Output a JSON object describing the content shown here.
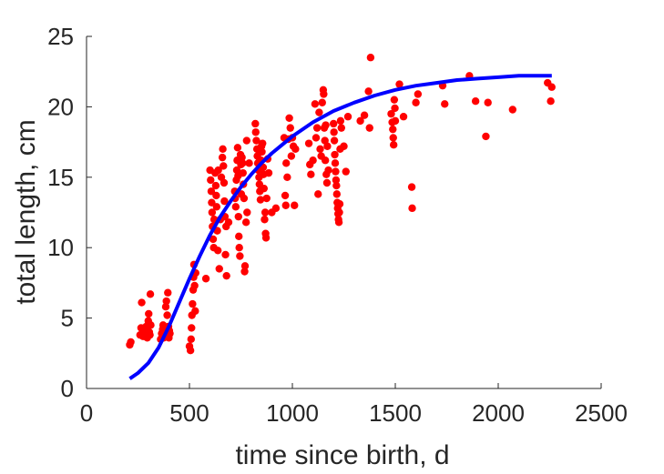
{
  "chart_data": {
    "type": "scatter",
    "title": "",
    "xlabel": "time since birth, d",
    "ylabel": "total length, cm",
    "xlim": [
      0,
      2500
    ],
    "ylim": [
      0,
      25
    ],
    "xticks": [
      0,
      500,
      1000,
      1500,
      2000,
      2500
    ],
    "yticks": [
      0,
      5,
      10,
      15,
      20,
      25
    ],
    "grid": false,
    "legend": "none",
    "colors": {
      "points": "#ff0000",
      "curve": "#0000ff",
      "axes": "#262626"
    },
    "series": [
      {
        "kind": "points",
        "points": [
          [
            210,
            3.1
          ],
          [
            215,
            3.3
          ],
          [
            260,
            3.8
          ],
          [
            265,
            4.3
          ],
          [
            268,
            6.1
          ],
          [
            275,
            3.7
          ],
          [
            280,
            4.1
          ],
          [
            285,
            3.9
          ],
          [
            290,
            4.4
          ],
          [
            295,
            3.6
          ],
          [
            300,
            4.8
          ],
          [
            302,
            5.3
          ],
          [
            305,
            4.0
          ],
          [
            308,
            3.8
          ],
          [
            310,
            6.7
          ],
          [
            312,
            4.5
          ],
          [
            360,
            3.5
          ],
          [
            365,
            3.9
          ],
          [
            370,
            4.2
          ],
          [
            372,
            4.5
          ],
          [
            375,
            3.6
          ],
          [
            378,
            4.3
          ],
          [
            380,
            3.7
          ],
          [
            385,
            5.8
          ],
          [
            388,
            6.2
          ],
          [
            390,
            4.0
          ],
          [
            392,
            5.2
          ],
          [
            395,
            6.8
          ],
          [
            398,
            4.4
          ],
          [
            400,
            3.6
          ],
          [
            402,
            4.1
          ],
          [
            405,
            3.9
          ],
          [
            500,
            3.0
          ],
          [
            505,
            2.7
          ],
          [
            508,
            3.5
          ],
          [
            510,
            4.3
          ],
          [
            512,
            5.2
          ],
          [
            515,
            6.0
          ],
          [
            518,
            7.0
          ],
          [
            520,
            7.9
          ],
          [
            522,
            8.8
          ],
          [
            525,
            7.3
          ],
          [
            528,
            5.5
          ],
          [
            530,
            8.2
          ],
          [
            580,
            7.8
          ],
          [
            600,
            15.5
          ],
          [
            603,
            14.8
          ],
          [
            606,
            14.0
          ],
          [
            608,
            13.2
          ],
          [
            610,
            12.5
          ],
          [
            612,
            11.5
          ],
          [
            615,
            10.6
          ],
          [
            618,
            10.0
          ],
          [
            620,
            12.0
          ],
          [
            625,
            15.3
          ],
          [
            628,
            14.4
          ],
          [
            630,
            13.7
          ],
          [
            632,
            12.9
          ],
          [
            635,
            11.2
          ],
          [
            638,
            9.8
          ],
          [
            640,
            15.5
          ],
          [
            645,
            8.5
          ],
          [
            650,
            12.0
          ],
          [
            655,
            15.0
          ],
          [
            660,
            16.4
          ],
          [
            662,
            17.0
          ],
          [
            665,
            15.8
          ],
          [
            668,
            14.6
          ],
          [
            670,
            13.3
          ],
          [
            672,
            12.2
          ],
          [
            675,
            9.5
          ],
          [
            678,
            11.5
          ],
          [
            680,
            8.0
          ],
          [
            690,
            11.8
          ],
          [
            720,
            14.0
          ],
          [
            722,
            13.5
          ],
          [
            725,
            12.9
          ],
          [
            728,
            14.8
          ],
          [
            730,
            15.5
          ],
          [
            732,
            16.2
          ],
          [
            734,
            17.1
          ],
          [
            736,
            15.1
          ],
          [
            738,
            12.2
          ],
          [
            740,
            10.8
          ],
          [
            742,
            10.0
          ],
          [
            745,
            9.4
          ],
          [
            748,
            16.6
          ],
          [
            750,
            15.9
          ],
          [
            752,
            13.8
          ],
          [
            755,
            16.4
          ],
          [
            758,
            16.0
          ],
          [
            760,
            15.3
          ],
          [
            762,
            14.5
          ],
          [
            765,
            13.5
          ],
          [
            768,
            8.3
          ],
          [
            770,
            8.7
          ],
          [
            775,
            11.8
          ],
          [
            778,
            17.6
          ],
          [
            780,
            12.5
          ],
          [
            790,
            16.0
          ],
          [
            820,
            18.8
          ],
          [
            822,
            18.2
          ],
          [
            825,
            17.6
          ],
          [
            828,
            17.0
          ],
          [
            830,
            16.5
          ],
          [
            832,
            16.0
          ],
          [
            835,
            15.5
          ],
          [
            838,
            15.0
          ],
          [
            840,
            14.5
          ],
          [
            842,
            14.0
          ],
          [
            845,
            13.4
          ],
          [
            848,
            16.2
          ],
          [
            850,
            17.2
          ],
          [
            852,
            16.8
          ],
          [
            855,
            17.4
          ],
          [
            858,
            15.7
          ],
          [
            860,
            15.2
          ],
          [
            862,
            14.2
          ],
          [
            865,
            12.0
          ],
          [
            868,
            12.5
          ],
          [
            870,
            11.0
          ],
          [
            872,
            10.7
          ],
          [
            875,
            13.5
          ],
          [
            880,
            16.3
          ],
          [
            885,
            15.3
          ],
          [
            900,
            12.5
          ],
          [
            920,
            12.8
          ],
          [
            960,
            17.8
          ],
          [
            965,
            13.7
          ],
          [
            968,
            13.0
          ],
          [
            970,
            16.0
          ],
          [
            975,
            15.0
          ],
          [
            980,
            17.7
          ],
          [
            985,
            19.2
          ],
          [
            990,
            18.5
          ],
          [
            995,
            16.5
          ],
          [
            1000,
            17.8
          ],
          [
            1005,
            17.2
          ],
          [
            1010,
            13.0
          ],
          [
            1015,
            17.0
          ],
          [
            1080,
            17.4
          ],
          [
            1085,
            15.9
          ],
          [
            1090,
            15.2
          ],
          [
            1100,
            16.2
          ],
          [
            1110,
            20.2
          ],
          [
            1115,
            17.8
          ],
          [
            1120,
            18.5
          ],
          [
            1125,
            13.8
          ],
          [
            1130,
            19.6
          ],
          [
            1135,
            17.0
          ],
          [
            1140,
            16.5
          ],
          [
            1145,
            20.3
          ],
          [
            1150,
            21.2
          ],
          [
            1152,
            20.9
          ],
          [
            1155,
            18.5
          ],
          [
            1158,
            17.6
          ],
          [
            1160,
            16.2
          ],
          [
            1162,
            18.7
          ],
          [
            1165,
            15.2
          ],
          [
            1168,
            14.6
          ],
          [
            1170,
            17.2
          ],
          [
            1175,
            15.5
          ],
          [
            1200,
            18.8
          ],
          [
            1202,
            18.2
          ],
          [
            1204,
            17.6
          ],
          [
            1206,
            16.6
          ],
          [
            1208,
            16.0
          ],
          [
            1210,
            15.4
          ],
          [
            1212,
            14.8
          ],
          [
            1214,
            14.4
          ],
          [
            1216,
            13.8
          ],
          [
            1218,
            13.2
          ],
          [
            1220,
            12.8
          ],
          [
            1222,
            12.4
          ],
          [
            1224,
            12.0
          ],
          [
            1226,
            11.8
          ],
          [
            1228,
            12.5
          ],
          [
            1230,
            13.1
          ],
          [
            1232,
            17.0
          ],
          [
            1234,
            19.0
          ],
          [
            1238,
            18.5
          ],
          [
            1250,
            17.2
          ],
          [
            1260,
            15.4
          ],
          [
            1270,
            19.3
          ],
          [
            1330,
            19.0
          ],
          [
            1350,
            19.4
          ],
          [
            1370,
            21.1
          ],
          [
            1375,
            18.5
          ],
          [
            1380,
            23.5
          ],
          [
            1480,
            19.5
          ],
          [
            1485,
            18.9
          ],
          [
            1488,
            18.4
          ],
          [
            1490,
            17.8
          ],
          [
            1492,
            17.3
          ],
          [
            1495,
            20.5
          ],
          [
            1498,
            19.9
          ],
          [
            1500,
            19.0
          ],
          [
            1520,
            21.6
          ],
          [
            1540,
            19.3
          ],
          [
            1580,
            14.3
          ],
          [
            1582,
            12.8
          ],
          [
            1600,
            20.3
          ],
          [
            1610,
            20.9
          ],
          [
            1730,
            21.5
          ],
          [
            1740,
            20.2
          ],
          [
            1860,
            22.2
          ],
          [
            1890,
            20.4
          ],
          [
            1940,
            17.9
          ],
          [
            1950,
            20.3
          ],
          [
            2070,
            19.8
          ],
          [
            2240,
            21.7
          ],
          [
            2255,
            20.4
          ],
          [
            2260,
            21.4
          ]
        ]
      },
      {
        "kind": "fitted-curve",
        "x": [
          210,
          250,
          300,
          350,
          400,
          450,
          500,
          550,
          600,
          650,
          700,
          750,
          800,
          850,
          900,
          950,
          1000,
          1100,
          1200,
          1300,
          1400,
          1500,
          1600,
          1700,
          1800,
          1900,
          2000,
          2100,
          2200,
          2260
        ],
        "y": [
          0.7,
          1.1,
          1.8,
          2.9,
          4.4,
          6.1,
          7.8,
          9.4,
          10.9,
          12.2,
          13.3,
          14.3,
          15.2,
          16.0,
          16.7,
          17.3,
          17.9,
          18.9,
          19.7,
          20.3,
          20.8,
          21.2,
          21.5,
          21.7,
          21.9,
          22.0,
          22.1,
          22.2,
          22.2,
          22.2
        ]
      }
    ]
  }
}
